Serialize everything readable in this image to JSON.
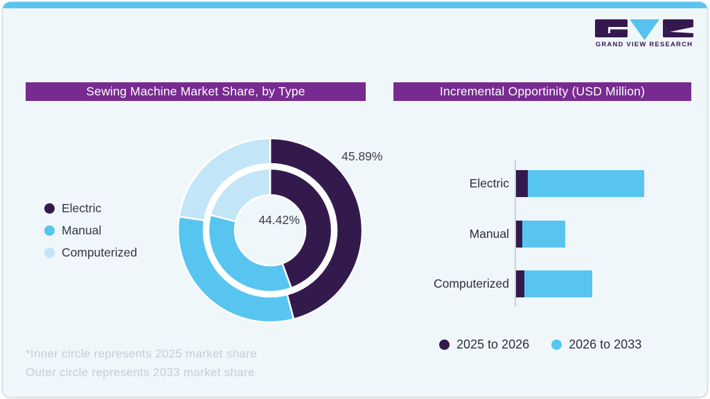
{
  "brand": {
    "name": "GRAND VIEW RESEARCH"
  },
  "panels": {
    "left": {
      "title": "Sewing Machine Market Share, by Type",
      "footnote_line1": "*Inner circle represents 2025 market share",
      "footnote_line2": "Outer circle represents 2033 market share"
    },
    "right": {
      "title": "Incremental Opportinity (USD Million)"
    }
  },
  "chart_data": [
    {
      "type": "donut",
      "title": "Sewing Machine Market Share, by Type",
      "categories": [
        "Electric",
        "Manual",
        "Computerized"
      ],
      "rings": [
        {
          "name": "2025 market share (inner circle)",
          "values_pct": [
            44.42,
            34.6,
            20.98
          ]
        },
        {
          "name": "2033 market share (outer circle)",
          "values_pct": [
            45.89,
            31.5,
            22.61
          ]
        }
      ],
      "labels": {
        "outer_electric": "45.89%",
        "inner_electric": "44.42%"
      },
      "start_angle_deg": 0,
      "direction": "clockwise",
      "note": "Only Electric slices are labeled in the image; Manual and Computerized percentages estimated from arc angles."
    },
    {
      "type": "bar",
      "orientation": "horizontal",
      "stacked": true,
      "title": "Incremental Opportinity (USD Million)",
      "categories": [
        "Electric",
        "Manual",
        "Computerized"
      ],
      "series": [
        {
          "name": "2025 to 2026",
          "values": [
            17,
            9,
            12
          ]
        },
        {
          "name": "2026 to 2033",
          "values": [
            168,
            62,
            98
          ]
        }
      ],
      "value_axis": "unlabeled",
      "note": "No numeric axis shown; values are relative magnitudes estimated from bar lengths (px)."
    }
  ],
  "colors": {
    "accent_strip": "#5ac4ef",
    "header_bg": "#772b90",
    "dark_purple": "#331a4d",
    "mid_blue": "#58c5f0",
    "light_blue": "#c2e5f7",
    "card_bg": "#f0f7fb",
    "card_border": "#ccd6dd",
    "text_dark": "#2f2f38",
    "footnote_gray": "#c6cdd5",
    "axis_gray": "#c9ced4"
  }
}
